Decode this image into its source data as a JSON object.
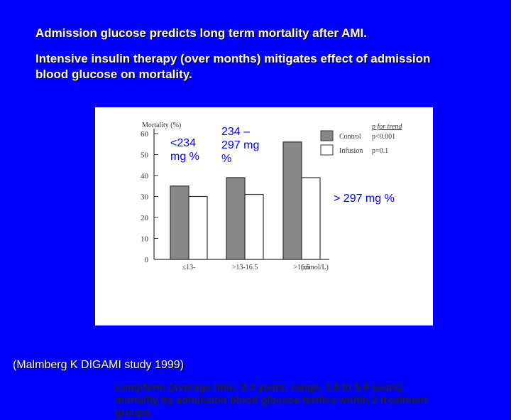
{
  "slide": {
    "title1": "Admission glucose predicts long term mortality after AMI.",
    "title2": "Intensive insulin therapy (over months) mitigates effect of admission blood glucose on mortality.",
    "annotations": [
      "<234 mg %",
      "234 – 297 mg %",
      "> 297 mg %"
    ],
    "citation": "(Malmberg K DIGAMI study 1999)"
  },
  "chart_data": {
    "type": "bar",
    "ylabel": "Mortality (%)",
    "xunit": "(mmol/L)",
    "categories": [
      "≤13-",
      ">13-16.5",
      ">16.5"
    ],
    "series": [
      {
        "name": "Control",
        "p_label": "p<0.001",
        "color": "#888888",
        "values": [
          35,
          39,
          56
        ]
      },
      {
        "name": "Infusion",
        "p_label": "p=0.1",
        "color": "#ffffff",
        "values": [
          30,
          31,
          39
        ]
      }
    ],
    "legend_title": "p for trend",
    "yticks": [
      0,
      10,
      20,
      30,
      40,
      50,
      60
    ],
    "ylim": [
      0,
      60
    ],
    "caption": "Long-term (average time, 3.4 years; range, 1.6 to 5.6 years) mortality by admission blood glucose tertiles within 2 treatment groups."
  }
}
